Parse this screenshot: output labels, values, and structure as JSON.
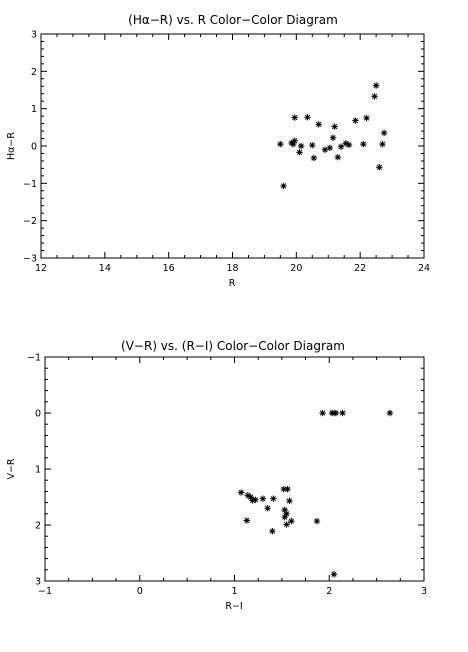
{
  "chart_data": [
    {
      "type": "scatter",
      "title": "(Hα−R) vs. R Color−Color Diagram",
      "xlabel": "R",
      "ylabel": "Hα−R",
      "xlim": [
        12,
        24
      ],
      "ylim": [
        -3,
        3
      ],
      "y_inverted": false,
      "xticks": [
        "12",
        "14",
        "16",
        "18",
        "20",
        "22",
        "24"
      ],
      "yticks": [
        "−3",
        "−2",
        "−1",
        "0",
        "1",
        "2",
        "3"
      ],
      "marker": "asterisk",
      "grid": false,
      "points": [
        {
          "x": 19.5,
          "y": 0.05
        },
        {
          "x": 19.6,
          "y": -1.07
        },
        {
          "x": 19.85,
          "y": 0.08
        },
        {
          "x": 19.9,
          "y": 0.05
        },
        {
          "x": 19.95,
          "y": 0.14
        },
        {
          "x": 19.95,
          "y": 0.76
        },
        {
          "x": 20.1,
          "y": -0.17
        },
        {
          "x": 20.15,
          "y": 0.0
        },
        {
          "x": 20.35,
          "y": 0.77
        },
        {
          "x": 20.5,
          "y": 0.02
        },
        {
          "x": 20.55,
          "y": -0.32
        },
        {
          "x": 20.7,
          "y": 0.58
        },
        {
          "x": 20.9,
          "y": -0.1
        },
        {
          "x": 21.05,
          "y": -0.05
        },
        {
          "x": 21.15,
          "y": 0.22
        },
        {
          "x": 21.2,
          "y": 0.52
        },
        {
          "x": 21.3,
          "y": -0.3
        },
        {
          "x": 21.4,
          "y": -0.02
        },
        {
          "x": 21.55,
          "y": 0.07
        },
        {
          "x": 21.65,
          "y": 0.03
        },
        {
          "x": 21.85,
          "y": 0.68
        },
        {
          "x": 22.1,
          "y": 0.05
        },
        {
          "x": 22.2,
          "y": 0.75
        },
        {
          "x": 22.45,
          "y": 1.33
        },
        {
          "x": 22.5,
          "y": 1.62
        },
        {
          "x": 22.6,
          "y": -0.57
        },
        {
          "x": 22.7,
          "y": 0.05
        },
        {
          "x": 22.75,
          "y": 0.35
        }
      ]
    },
    {
      "type": "scatter",
      "title": "(V−R) vs. (R−I) Color−Color Diagram",
      "xlabel": "R−I",
      "ylabel": "V−R",
      "xlim": [
        -1,
        3
      ],
      "ylim": [
        3,
        -1
      ],
      "y_inverted": true,
      "xticks": [
        "−1",
        "0",
        "1",
        "2",
        "3"
      ],
      "yticks": [
        "−1",
        "0",
        "1",
        "2",
        "3"
      ],
      "marker": "asterisk",
      "grid": false,
      "points": [
        {
          "x": 1.93,
          "y": 0.0
        },
        {
          "x": 2.03,
          "y": 0.0
        },
        {
          "x": 2.05,
          "y": 0.0
        },
        {
          "x": 2.07,
          "y": 0.0
        },
        {
          "x": 2.14,
          "y": 0.0
        },
        {
          "x": 2.64,
          "y": 0.0
        },
        {
          "x": 1.07,
          "y": 1.42
        },
        {
          "x": 1.14,
          "y": 1.47
        },
        {
          "x": 1.17,
          "y": 1.5
        },
        {
          "x": 1.19,
          "y": 1.56
        },
        {
          "x": 1.22,
          "y": 1.55
        },
        {
          "x": 1.3,
          "y": 1.53
        },
        {
          "x": 1.41,
          "y": 1.53
        },
        {
          "x": 1.35,
          "y": 1.7
        },
        {
          "x": 1.13,
          "y": 1.92
        },
        {
          "x": 1.4,
          "y": 2.11
        },
        {
          "x": 1.52,
          "y": 1.36
        },
        {
          "x": 1.56,
          "y": 1.36
        },
        {
          "x": 1.58,
          "y": 1.57
        },
        {
          "x": 1.53,
          "y": 1.73
        },
        {
          "x": 1.55,
          "y": 1.8
        },
        {
          "x": 1.53,
          "y": 1.86
        },
        {
          "x": 1.55,
          "y": 1.99
        },
        {
          "x": 1.6,
          "y": 1.93
        },
        {
          "x": 1.87,
          "y": 1.93
        },
        {
          "x": 2.05,
          "y": 2.88
        }
      ]
    }
  ]
}
